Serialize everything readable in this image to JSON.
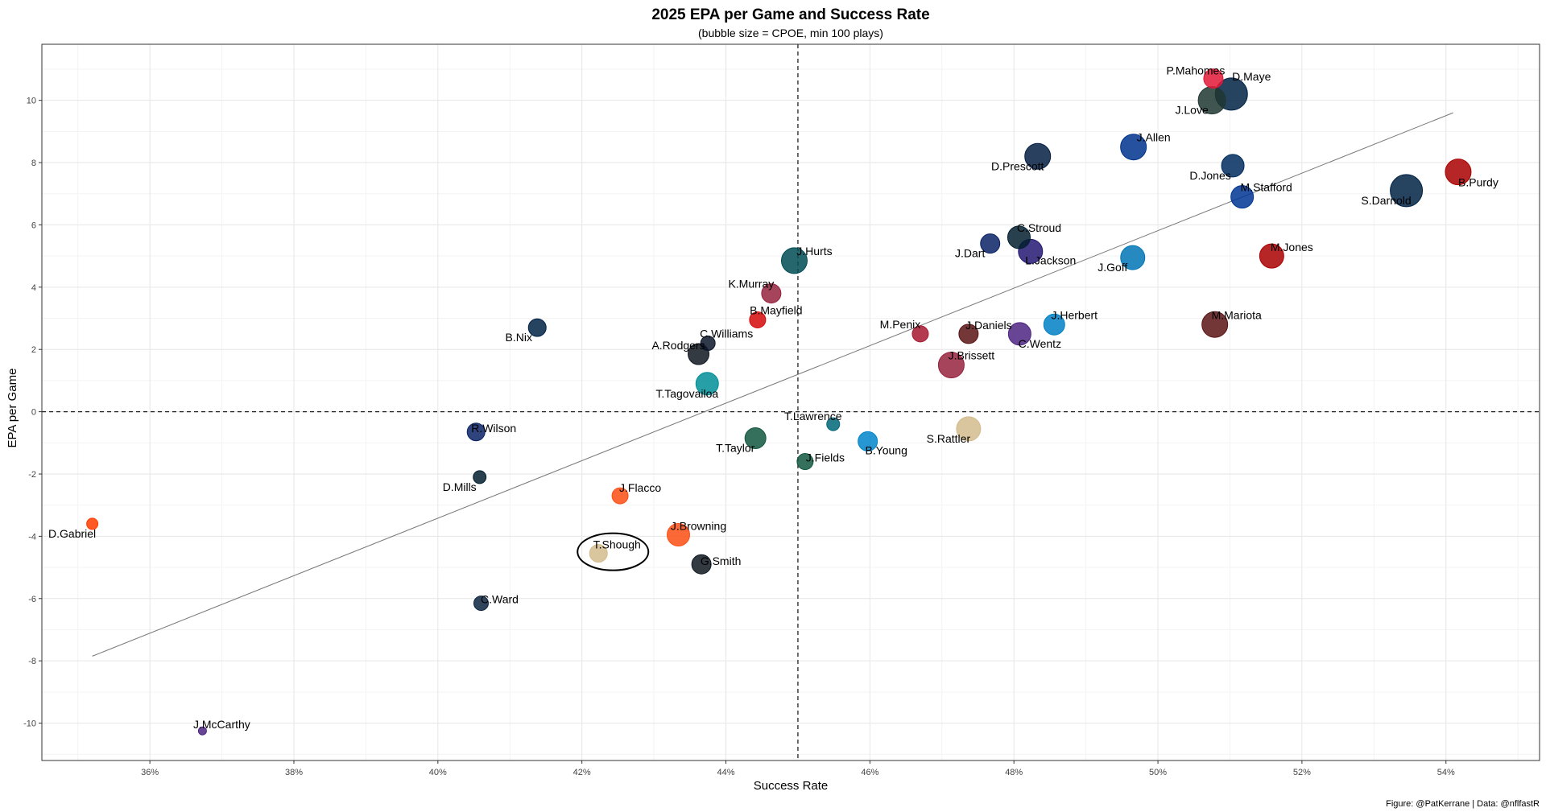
{
  "chart_data": {
    "type": "scatter",
    "title": "2025 EPA per Game and Success Rate",
    "subtitle": "(bubble size = CPOE, min 100 plays)",
    "xlabel": "Success Rate",
    "ylabel": "EPA per Game",
    "caption": "Figure: @PatKerrane | Data: @nflfastR",
    "xlim": [
      0.345,
      0.553
    ],
    "ylim": [
      -11.2,
      11.8
    ],
    "x_ticks": [
      0.36,
      0.38,
      0.4,
      0.42,
      0.44,
      0.46,
      0.48,
      0.5,
      0.52,
      0.54
    ],
    "x_tick_labels": [
      "36%",
      "38%",
      "40%",
      "42%",
      "44%",
      "46%",
      "48%",
      "50%",
      "52%",
      "54%"
    ],
    "y_ticks": [
      -10,
      -8,
      -6,
      -4,
      -2,
      0,
      2,
      4,
      6,
      8,
      10
    ],
    "y_tick_labels": [
      "-10",
      "-8",
      "-6",
      "-4",
      "-2",
      "0",
      "2",
      "4",
      "6",
      "8",
      "10"
    ],
    "grid": true,
    "reference_lines": {
      "x": 0.45,
      "y": 0
    },
    "trend_line": {
      "x": [
        0.352,
        0.541
      ],
      "y": [
        -7.85,
        9.6
      ]
    },
    "highlight": "T.Shough",
    "points": [
      {
        "name": "P.Mahomes",
        "x": 0.5077,
        "y": 10.7,
        "size": 12,
        "color": "#E31837"
      },
      {
        "name": "D.Maye",
        "x": 0.5102,
        "y": 10.2,
        "size": 20,
        "color": "#002244"
      },
      {
        "name": "J.Love",
        "x": 0.5075,
        "y": 10.0,
        "size": 17,
        "color": "#203731"
      },
      {
        "name": "J.Allen",
        "x": 0.4966,
        "y": 8.5,
        "size": 16,
        "color": "#00338D"
      },
      {
        "name": "D.Prescott",
        "x": 0.4833,
        "y": 8.2,
        "size": 16,
        "color": "#041E42"
      },
      {
        "name": "D.Jones",
        "x": 0.5104,
        "y": 7.9,
        "size": 14,
        "color": "#002C5F"
      },
      {
        "name": "B.Purdy",
        "x": 0.5417,
        "y": 7.7,
        "size": 16,
        "color": "#AA0000"
      },
      {
        "name": "S.Darnold",
        "x": 0.5345,
        "y": 7.1,
        "size": 20,
        "color": "#002244"
      },
      {
        "name": "M.Stafford",
        "x": 0.5117,
        "y": 6.9,
        "size": 14,
        "color": "#003594"
      },
      {
        "name": "C.Stroud",
        "x": 0.4807,
        "y": 5.6,
        "size": 14,
        "color": "#03202F"
      },
      {
        "name": "J.Dart",
        "x": 0.4767,
        "y": 5.4,
        "size": 12,
        "color": "#0B2265"
      },
      {
        "name": "L.Jackson",
        "x": 0.4823,
        "y": 5.15,
        "size": 15,
        "color": "#241773"
      },
      {
        "name": "J.Goff",
        "x": 0.4965,
        "y": 4.95,
        "size": 15,
        "color": "#0076B6"
      },
      {
        "name": "M.Jones",
        "x": 0.5158,
        "y": 5.0,
        "size": 15,
        "color": "#AA0000"
      },
      {
        "name": "J.Hurts",
        "x": 0.4495,
        "y": 4.85,
        "size": 16,
        "color": "#004C54"
      },
      {
        "name": "K.Murray",
        "x": 0.4463,
        "y": 3.8,
        "size": 12,
        "color": "#97233F"
      },
      {
        "name": "B.Mayfield",
        "x": 0.4444,
        "y": 2.95,
        "size": 10,
        "color": "#D50A0A"
      },
      {
        "name": "B.Nix",
        "x": 0.4138,
        "y": 2.7,
        "size": 11,
        "color": "#002244"
      },
      {
        "name": "M.Penix",
        "x": 0.467,
        "y": 2.5,
        "size": 10,
        "color": "#A71930"
      },
      {
        "name": "J.Daniels",
        "x": 0.4737,
        "y": 2.5,
        "size": 12,
        "color": "#5A1414"
      },
      {
        "name": "C.Wentz",
        "x": 0.4808,
        "y": 2.5,
        "size": 14,
        "color": "#4F2683"
      },
      {
        "name": "J.Herbert",
        "x": 0.4856,
        "y": 2.8,
        "size": 13,
        "color": "#0080C6"
      },
      {
        "name": "M.Mariota",
        "x": 0.5079,
        "y": 2.8,
        "size": 16,
        "color": "#5A1414"
      },
      {
        "name": "C.Williams",
        "x": 0.4375,
        "y": 2.2,
        "size": 9,
        "color": "#0B162A"
      },
      {
        "name": "A.Rodgers",
        "x": 0.4362,
        "y": 1.85,
        "size": 13,
        "color": "#101820"
      },
      {
        "name": "J.Brissett",
        "x": 0.4713,
        "y": 1.5,
        "size": 16,
        "color": "#97233F"
      },
      {
        "name": "T.Tagovailoa",
        "x": 0.4374,
        "y": 0.9,
        "size": 14,
        "color": "#008E97"
      },
      {
        "name": "T.Lawrence",
        "x": 0.4549,
        "y": -0.4,
        "size": 8,
        "color": "#006778"
      },
      {
        "name": "R.Wilson",
        "x": 0.4053,
        "y": -0.65,
        "size": 11,
        "color": "#0B2265"
      },
      {
        "name": "S.Rattler",
        "x": 0.4737,
        "y": -0.55,
        "size": 15,
        "color": "#D3BC8D"
      },
      {
        "name": "B.Young",
        "x": 0.4597,
        "y": -0.95,
        "size": 12,
        "color": "#0085CA"
      },
      {
        "name": "T.Taylor",
        "x": 0.4441,
        "y": -0.85,
        "size": 13,
        "color": "#125740"
      },
      {
        "name": "J.Fields",
        "x": 0.451,
        "y": -1.6,
        "size": 10,
        "color": "#125740"
      },
      {
        "name": "D.Mills",
        "x": 0.4058,
        "y": -2.1,
        "size": 8,
        "color": "#03202F"
      },
      {
        "name": "J.Flacco",
        "x": 0.4253,
        "y": -2.7,
        "size": 10,
        "color": "#FB4F14"
      },
      {
        "name": "D.Gabriel",
        "x": 0.352,
        "y": -3.6,
        "size": 7,
        "color": "#FF3C00"
      },
      {
        "name": "J.Browning",
        "x": 0.4334,
        "y": -3.95,
        "size": 14,
        "color": "#FB4F14"
      },
      {
        "name": "T.Shough",
        "x": 0.4223,
        "y": -4.55,
        "size": 11,
        "color": "#D3BC8D"
      },
      {
        "name": "G.Smith",
        "x": 0.4366,
        "y": -4.9,
        "size": 12,
        "color": "#101820"
      },
      {
        "name": "C.Ward",
        "x": 0.406,
        "y": -6.15,
        "size": 9,
        "color": "#0C2340"
      },
      {
        "name": "J.McCarthy",
        "x": 0.3673,
        "y": -10.25,
        "size": 5,
        "color": "#4F2683"
      }
    ]
  }
}
